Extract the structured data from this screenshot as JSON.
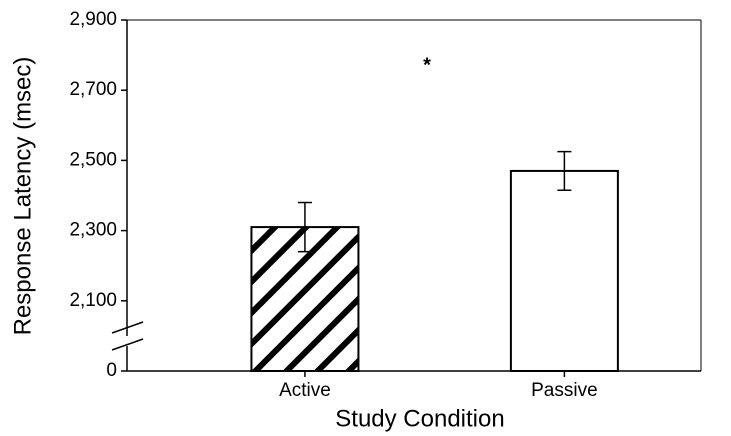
{
  "chart_data": {
    "type": "bar",
    "categories": [
      "Active",
      "Passive"
    ],
    "values": [
      2310,
      2470
    ],
    "errors": [
      70,
      55
    ],
    "patterns": [
      "diagonal",
      "none"
    ],
    "color": "#ffffff",
    "xlabel": "Study Condition",
    "ylabel": "Response Latency (msec)",
    "annotation": "*",
    "ylim": [
      0,
      2900
    ],
    "axis_break": [
      0,
      1900
    ],
    "yticks": [
      0,
      {
        "value": 2100,
        "label": "2,100"
      },
      {
        "value": 2300,
        "label": "2,300"
      },
      {
        "value": 2500,
        "label": "2,500"
      },
      {
        "value": 2700,
        "label": "2,700"
      },
      {
        "value": 2900,
        "label": "2,900"
      }
    ]
  }
}
